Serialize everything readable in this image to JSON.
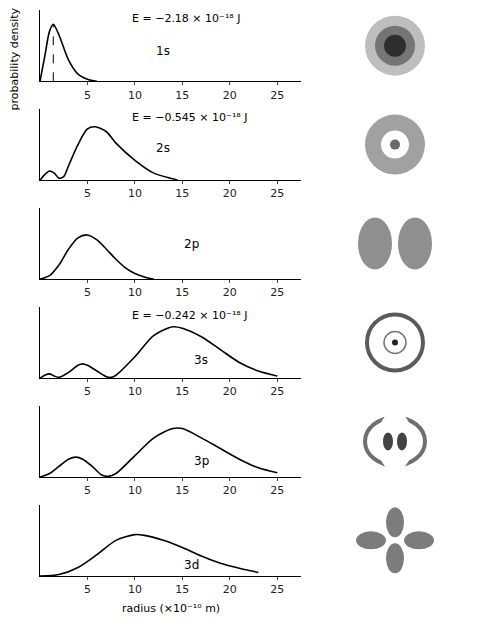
{
  "chart_data": [
    {
      "type": "line",
      "title": "1s",
      "annotation": "E = −2.18 × 10⁻¹⁸ J",
      "y_label": "probability density",
      "x": [
        0,
        0.5,
        1,
        1.4,
        2,
        3,
        4,
        5,
        6
      ],
      "values": [
        0,
        0.35,
        0.7,
        0.8,
        0.65,
        0.3,
        0.1,
        0.03,
        0
      ],
      "peak_x": 1.4,
      "line_style": "dashed",
      "color": "#000000",
      "xlim": [
        0,
        27.5
      ],
      "xticks": [
        5,
        10,
        15,
        20,
        25
      ],
      "ylim": [
        0,
        1
      ],
      "tick_labels": "x"
    },
    {
      "type": "line",
      "title": "2s",
      "annotation": "E = −0.545 × 10⁻¹⁸ J",
      "x": [
        0,
        0.5,
        1,
        1.5,
        2,
        2.5,
        3,
        4,
        5,
        5.8,
        7,
        8,
        10,
        12,
        14,
        14.5
      ],
      "values": [
        0,
        0.08,
        0.13,
        0.1,
        0.03,
        0.05,
        0.2,
        0.5,
        0.72,
        0.75,
        0.68,
        0.52,
        0.28,
        0.1,
        0.02,
        0
      ],
      "color": "#000000",
      "xlim": [
        0,
        27.5
      ],
      "xticks": [
        5,
        10,
        15,
        20,
        25
      ],
      "ylim": [
        0,
        1
      ],
      "tick_labels": "x"
    },
    {
      "type": "line",
      "title": "2p",
      "x": [
        0,
        1,
        2,
        3,
        4,
        5,
        6,
        7,
        8,
        9,
        10,
        11,
        12
      ],
      "values": [
        0,
        0.05,
        0.2,
        0.42,
        0.58,
        0.62,
        0.55,
        0.42,
        0.28,
        0.16,
        0.08,
        0.03,
        0
      ],
      "color": "#000000",
      "xlim": [
        0,
        27.5
      ],
      "xticks": [
        5,
        10,
        15,
        20,
        25
      ],
      "ylim": [
        0,
        1
      ],
      "tick_labels": "x"
    },
    {
      "type": "line",
      "title": "3s",
      "annotation": "E = −0.242 × 10⁻¹⁸ J",
      "x": [
        0,
        0.5,
        1,
        1.5,
        2,
        3,
        4,
        4.5,
        5,
        6,
        7,
        7.5,
        8,
        10,
        12,
        14,
        15,
        17,
        19,
        21,
        23,
        25
      ],
      "values": [
        0,
        0.04,
        0.06,
        0.03,
        0.01,
        0.08,
        0.18,
        0.2,
        0.18,
        0.1,
        0.02,
        0.01,
        0.04,
        0.3,
        0.6,
        0.72,
        0.7,
        0.58,
        0.4,
        0.22,
        0.1,
        0.03
      ],
      "color": "#000000",
      "xlim": [
        0,
        27.5
      ],
      "xticks": [
        5,
        10,
        15,
        20,
        25
      ],
      "ylim": [
        0,
        1
      ],
      "tick_labels": "x"
    },
    {
      "type": "line",
      "title": "3p",
      "x": [
        0,
        1,
        2,
        3,
        3.8,
        4.5,
        5.5,
        6.5,
        7.2,
        8,
        10,
        12,
        14,
        15,
        17,
        19,
        21,
        23,
        25
      ],
      "values": [
        0,
        0.05,
        0.15,
        0.25,
        0.28,
        0.25,
        0.15,
        0.03,
        0.01,
        0.05,
        0.3,
        0.55,
        0.68,
        0.68,
        0.55,
        0.4,
        0.25,
        0.13,
        0.06
      ],
      "color": "#000000",
      "xlim": [
        0,
        27.5
      ],
      "xticks": [
        5,
        10,
        15,
        20,
        25
      ],
      "ylim": [
        0,
        1
      ],
      "tick_labels": "x"
    },
    {
      "type": "line",
      "title": "3d",
      "x_label": "radius (×10⁻¹⁰ m)",
      "x": [
        0,
        2,
        4,
        6,
        8,
        10,
        11,
        13,
        15,
        17,
        19,
        21,
        23
      ],
      "values": [
        0,
        0.02,
        0.12,
        0.3,
        0.5,
        0.58,
        0.57,
        0.5,
        0.4,
        0.28,
        0.18,
        0.11,
        0.05
      ],
      "color": "#000000",
      "xlim": [
        0,
        27.5
      ],
      "xticks": [
        5,
        10,
        15,
        20,
        25
      ],
      "ylim": [
        0,
        1
      ],
      "tick_labels": "x"
    }
  ]
}
